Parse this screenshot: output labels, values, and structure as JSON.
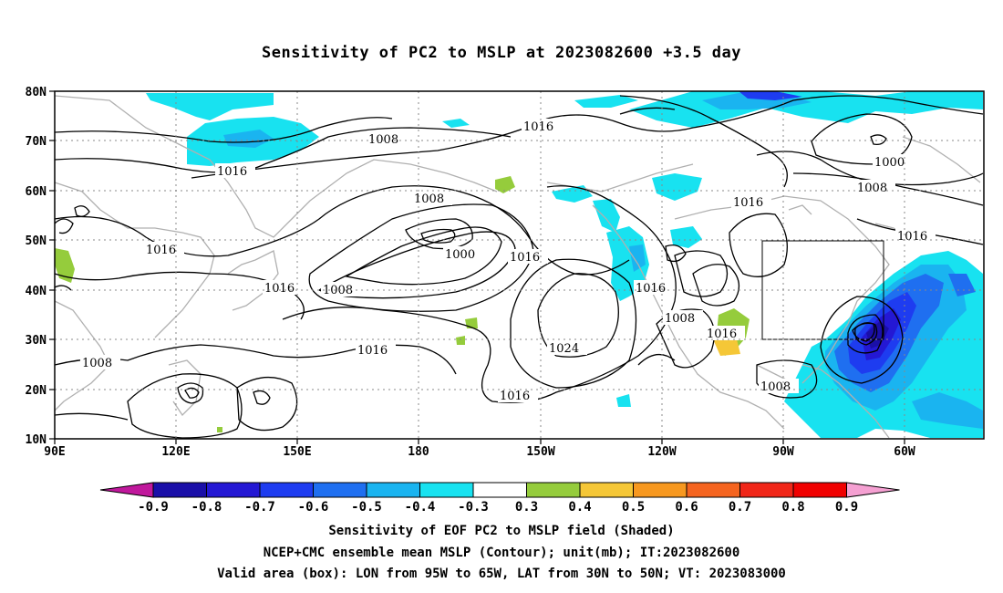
{
  "title": "Sensitivity of PC2 to MSLP at 2023082600 +3.5 day",
  "map": {
    "lon_labels": [
      "90E",
      "120E",
      "150E",
      "180",
      "150W",
      "120W",
      "90W",
      "60W"
    ],
    "lat_labels": [
      "80N",
      "70N",
      "60N",
      "50N",
      "40N",
      "30N",
      "20N",
      "10N"
    ],
    "contour_labels": {
      "1008a": "1008",
      "1016a": "1016",
      "1016b": "1016",
      "1008b": "1008",
      "1000a": "1000",
      "1008c": "1008",
      "1016c": "1016",
      "1016d": "1016",
      "1016e": "1016",
      "1016f": "1016",
      "1024": "1024",
      "1016g": "1016",
      "1016h": "1016",
      "1008d": "1008",
      "1016i": "1016",
      "1008e": "1008",
      "1000b": "1000",
      "1008f": "1008",
      "1016j": "1016",
      "1016k": "1016",
      "1008g": "1008"
    },
    "valid_box": {
      "lon": [
        "95W",
        "65W"
      ],
      "lat": [
        "30N",
        "50N"
      ]
    },
    "colors": {
      "neg_09": "#1a0fa8",
      "neg_08": "#2418d4",
      "neg_07": "#1e3cf0",
      "neg_06": "#1f6ff0",
      "neg_05": "#1ab4f0",
      "neg_04": "#18e2f0",
      "pos_04": "#95cc3c",
      "pos_05": "#f5c737",
      "ocean_outline": "#b0b0b0"
    }
  },
  "colorbar": {
    "ticks": [
      "-0.9",
      "-0.8",
      "-0.7",
      "-0.6",
      "-0.5",
      "-0.4",
      "-0.3",
      "0.3",
      "0.4",
      "0.5",
      "0.6",
      "0.7",
      "0.8",
      "0.9"
    ],
    "colors": [
      "#c0189c",
      "#1a0fa8",
      "#2418d4",
      "#1e3cf0",
      "#1f6ff0",
      "#1ab4f0",
      "#18e2f0",
      "#ffffff",
      "#95cc3c",
      "#f5c737",
      "#f7981f",
      "#f5641f",
      "#f02618",
      "#f00000",
      "#f5a0d2"
    ]
  },
  "captions": {
    "line1": "Sensitivity of EOF PC2 to MSLP field (Shaded)",
    "line2": "NCEP+CMC ensemble mean MSLP (Contour); unit(mb); IT:2023082600",
    "line3": "Valid area (box): LON from 95W to 65W, LAT from 30N to 50N; VT: 2023083000"
  }
}
